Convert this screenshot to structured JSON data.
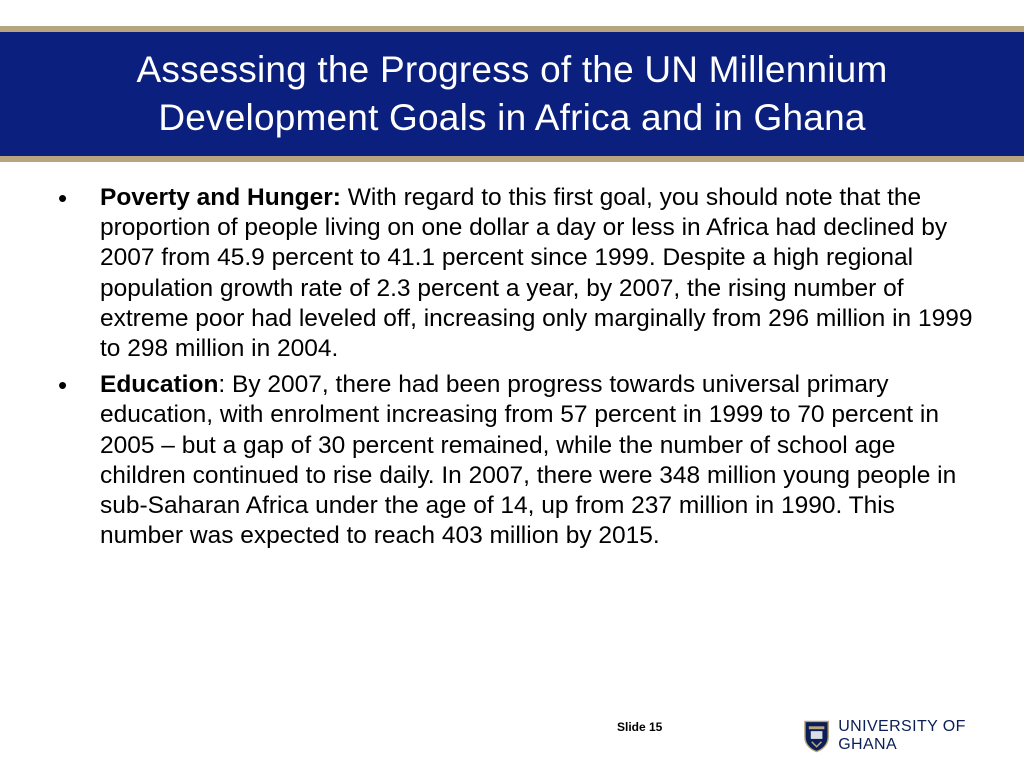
{
  "title": {
    "line1": "Assessing the Progress of the UN Millennium",
    "line2": "Development Goals in Africa and in Ghana"
  },
  "bullets": [
    {
      "heading": "Poverty and Hunger:",
      "text": " With regard to this first goal, you should note that the proportion of people living on one dollar a day or less in Africa had declined by 2007 from 45.9 percent to 41.1 percent since 1999. Despite a high regional population growth rate of 2.3 percent a year, by 2007, the rising number of extreme poor had leveled off, increasing only marginally from 296 million in 1999 to 298 million in 2004."
    },
    {
      "heading": "Education",
      "text": ": By 2007, there had been progress towards universal primary education, with enrolment increasing from 57 percent in 1999 to 70 percent in 2005 – but a gap of 30 percent remained, while the number of school age children continued to rise daily. In 2007, there were 348 million young people in sub-Saharan Africa under the age of 14, up from 237 million in 1990. This number was expected to reach 403 million by 2015."
    }
  ],
  "footer": {
    "slide_label": "Slide 15",
    "logo_text": "UNIVERSITY OF GHANA"
  },
  "colors": {
    "title_band": "#0b1f7e",
    "accent_line": "#b8a47e"
  },
  "icons": {
    "crest": "university-crest-icon"
  }
}
